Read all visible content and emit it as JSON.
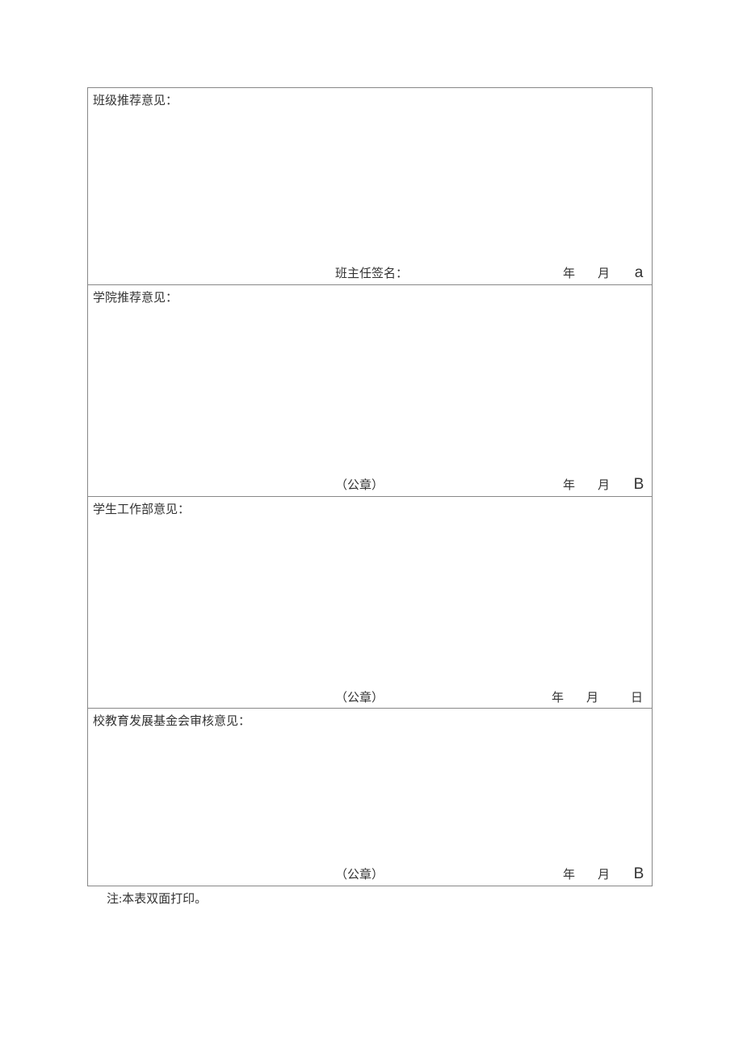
{
  "form": {
    "sections": [
      {
        "label": "班级推荐意见：",
        "sign_label": "班主任签名：",
        "year_label": "年",
        "month_label": "月",
        "day_label": "a",
        "day_class": "date-day"
      },
      {
        "label": "学院推荐意见：",
        "sign_label": "（公章）",
        "year_label": "年",
        "month_label": "月",
        "day_label": "B",
        "day_class": "date-day"
      },
      {
        "label": "学生工作部意见：",
        "sign_label": "（公章）",
        "year_label": "年",
        "month_label": "月",
        "day_label": "日",
        "day_class": "date-day-cn"
      },
      {
        "label": "校教育发展基金会审核意见：",
        "sign_label": "（公章）",
        "year_label": "年",
        "month_label": "月",
        "day_label": "B",
        "day_class": "date-day"
      }
    ],
    "footnote": "注:本表双面打印。"
  },
  "style": {
    "border_color": "#888888",
    "text_color": "#333333",
    "background": "#ffffff",
    "label_fontsize": 15
  }
}
